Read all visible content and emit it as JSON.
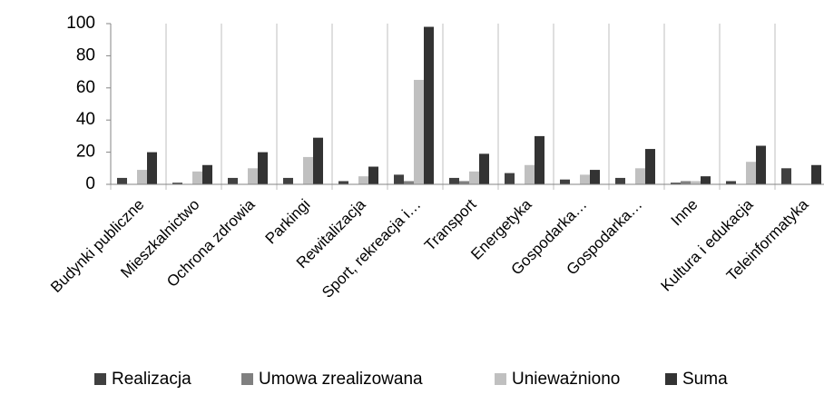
{
  "chart_data": {
    "type": "bar",
    "categories": [
      "Budynki publiczne",
      "Mieszkalnictwo",
      "Ochrona zdrowia",
      "Parkingi",
      "Rewitalizacja",
      "Sport, rekreacja i…",
      "Transport",
      "Energetyka",
      "Gospodarka…",
      "Gospodarka…",
      "Inne",
      "Kultura i edukacja",
      "Teleinformatyka"
    ],
    "series": [
      {
        "name": "Realizacja",
        "color": "#404040",
        "values": [
          4,
          1,
          4,
          4,
          2,
          6,
          4,
          7,
          3,
          4,
          1,
          2,
          10
        ]
      },
      {
        "name": "Umowa zrealizowana",
        "color": "#808080",
        "values": [
          0,
          0,
          0,
          0,
          0,
          2,
          2,
          0,
          0,
          0,
          2,
          0,
          0
        ]
      },
      {
        "name": "Unieważniono",
        "color": "#c0c0c0",
        "values": [
          9,
          8,
          10,
          17,
          5,
          65,
          8,
          12,
          6,
          10,
          2,
          14,
          0
        ]
      },
      {
        "name": "Suma",
        "color": "#333333",
        "values": [
          20,
          12,
          20,
          29,
          11,
          98,
          19,
          30,
          9,
          22,
          5,
          24,
          12
        ]
      }
    ],
    "ylim": [
      0,
      100
    ],
    "yticks": [
      0,
      20,
      40,
      60,
      80,
      100
    ],
    "legend": "bottom"
  }
}
